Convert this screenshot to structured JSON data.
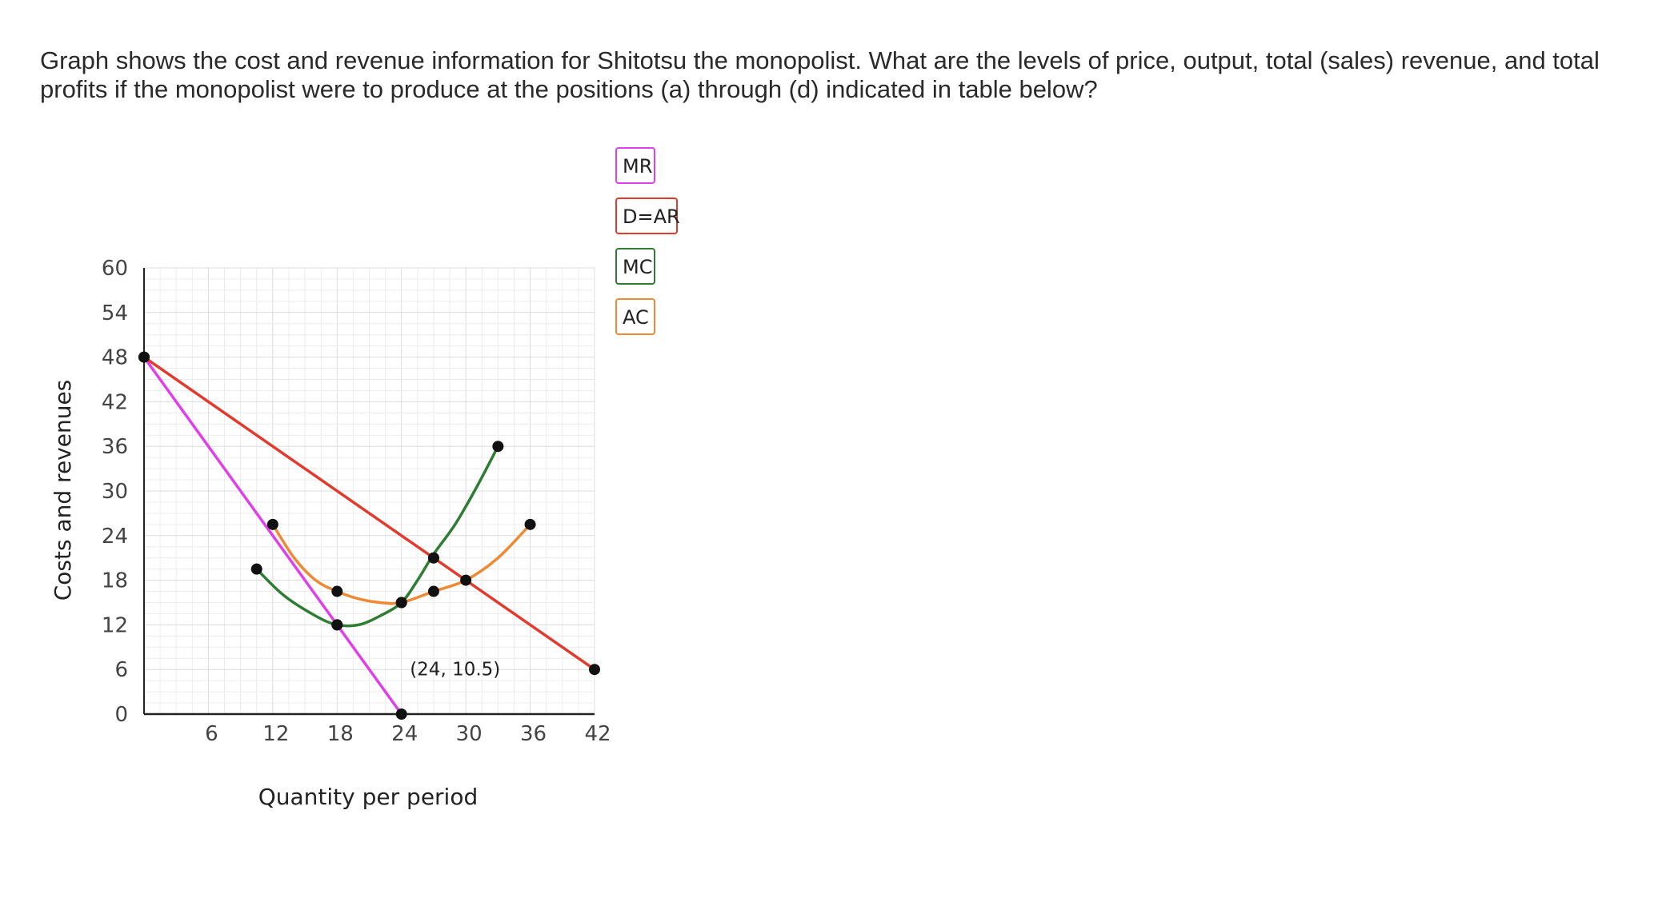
{
  "question": {
    "text": "Graph shows the cost and revenue information for Shitotsu the monopolist. What are the levels of price, output, total (sales) revenue, and total profits if the monopolist were to produce at the positions (a) through (d) indicated in table below?"
  },
  "chart_data": {
    "type": "line",
    "xlabel": "Quantity per period",
    "ylabel": "Costs and revenues",
    "xlim": [
      0,
      42
    ],
    "ylim": [
      0,
      60
    ],
    "x_ticks": [
      6,
      12,
      18,
      24,
      30,
      36,
      42
    ],
    "y_ticks": [
      0,
      6,
      12,
      18,
      24,
      30,
      36,
      42,
      48,
      54,
      60
    ],
    "grid": true,
    "legend_placement": "right",
    "series": [
      {
        "name": "MR",
        "color": "#e040e8",
        "points": [
          [
            0,
            48
          ],
          [
            24,
            0
          ]
        ],
        "markers": [
          [
            0,
            48
          ],
          [
            18,
            12
          ],
          [
            24,
            0
          ]
        ]
      },
      {
        "name": "D=AR",
        "color": "#e23a2d",
        "points": [
          [
            0,
            48
          ],
          [
            42,
            6
          ]
        ],
        "markers": [
          [
            0,
            48
          ],
          [
            27,
            21
          ],
          [
            42,
            6
          ]
        ]
      },
      {
        "name": "MC",
        "color": "#2e7d32",
        "points": [
          [
            10.5,
            19.5
          ],
          [
            13,
            16
          ],
          [
            16,
            13.2
          ],
          [
            18,
            12
          ],
          [
            20,
            12
          ],
          [
            22,
            13.2
          ],
          [
            24,
            15
          ],
          [
            25.5,
            18
          ],
          [
            27,
            21.5
          ],
          [
            29,
            25.5
          ],
          [
            31,
            30.5
          ],
          [
            33,
            36
          ]
        ],
        "markers": [
          [
            10.5,
            19.5
          ],
          [
            18,
            12
          ],
          [
            24,
            15
          ],
          [
            27,
            21
          ],
          [
            33,
            36
          ]
        ]
      },
      {
        "name": "AC",
        "color": "#ef8a34",
        "points": [
          [
            12,
            25.5
          ],
          [
            14,
            21
          ],
          [
            16,
            18
          ],
          [
            18,
            16.5
          ],
          [
            20,
            15.5
          ],
          [
            22,
            15
          ],
          [
            24,
            15
          ],
          [
            27,
            16.5
          ],
          [
            30,
            18
          ],
          [
            33,
            21
          ],
          [
            36,
            25.5
          ]
        ],
        "markers": [
          [
            12,
            25.5
          ],
          [
            18,
            16.5
          ],
          [
            24,
            15
          ],
          [
            27,
            16.5
          ],
          [
            30,
            18
          ],
          [
            36,
            25.5
          ]
        ]
      }
    ],
    "annotations": [
      {
        "text": "(24, 10.5)",
        "x": 29,
        "y": 5.2
      }
    ]
  }
}
